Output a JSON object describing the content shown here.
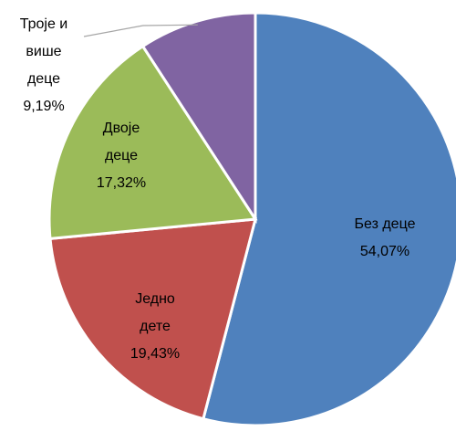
{
  "chart_data": {
    "type": "pie",
    "categories": [
      "Без деце",
      "Једно дете",
      "Двоје деце",
      "Троје и више деце"
    ],
    "values": [
      54.07,
      19.43,
      17.32,
      9.19
    ],
    "value_labels": [
      "54,07%",
      "19,43%",
      "17,32%",
      "9,19%"
    ],
    "colors": [
      "#4f81bd",
      "#c0504d",
      "#9bbb59",
      "#8064a2"
    ]
  }
}
